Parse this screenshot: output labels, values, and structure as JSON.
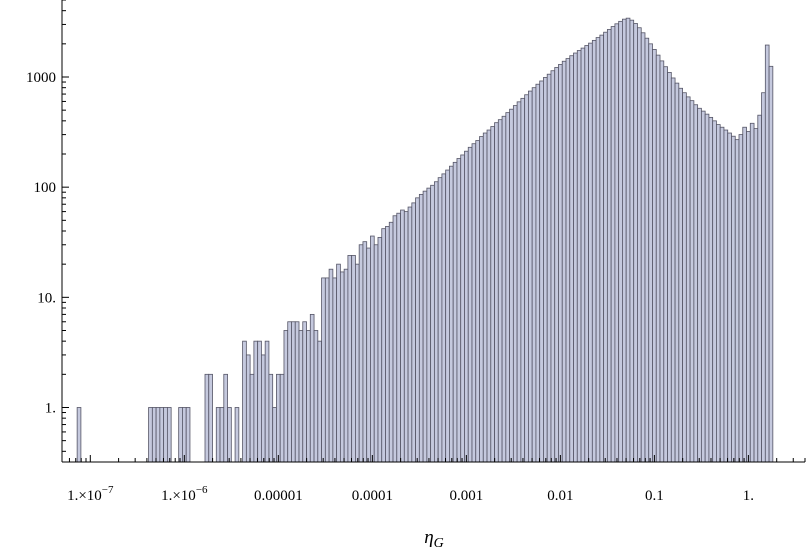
{
  "chart_data": {
    "type": "bar",
    "title": "",
    "xlabel": "η",
    "xlabel_sub": "G",
    "ylabel": "",
    "x_scale": "log",
    "y_scale": "log",
    "xlim": [
      5e-08,
      4
    ],
    "ylim": [
      0.32,
      5000
    ],
    "bar_color": "#c5c9de",
    "bar_edge_color": "#555566",
    "x_ticks": [
      {
        "value": 1e-07,
        "label_main": "1.×10",
        "label_exp": "−7"
      },
      {
        "value": 1e-06,
        "label_main": "1.×10",
        "label_exp": "−6"
      },
      {
        "value": 1e-05,
        "label_main": "0.00001",
        "label_exp": ""
      },
      {
        "value": 0.0001,
        "label_main": "0.0001",
        "label_exp": ""
      },
      {
        "value": 0.001,
        "label_main": "0.001",
        "label_exp": ""
      },
      {
        "value": 0.01,
        "label_main": "0.01",
        "label_exp": ""
      },
      {
        "value": 0.1,
        "label_main": "0.1",
        "label_exp": ""
      },
      {
        "value": 1,
        "label_main": "1.",
        "label_exp": ""
      }
    ],
    "y_ticks": [
      {
        "value": 1,
        "label": "1."
      },
      {
        "value": 10,
        "label": "10."
      },
      {
        "value": 100,
        "label": "100"
      },
      {
        "value": 1000,
        "label": "1000"
      }
    ],
    "bins": {
      "log10_start": -7.14,
      "log10_width": 0.04,
      "baseline": 0.32
    },
    "counts": [
      1,
      0,
      0,
      0,
      0,
      0,
      0,
      0,
      0,
      0,
      0,
      0,
      0,
      0,
      0,
      0,
      0,
      0,
      0,
      1,
      1,
      1,
      1,
      1,
      1,
      0,
      0,
      1,
      1,
      1,
      0,
      0,
      0,
      0,
      2,
      2,
      0,
      1,
      1,
      2,
      1,
      0,
      1,
      0,
      4,
      3,
      2,
      4,
      4,
      3,
      4,
      2,
      1,
      2,
      2,
      5,
      6,
      6,
      6,
      5,
      6,
      5,
      7,
      5,
      4,
      15,
      15,
      18,
      15,
      20,
      17,
      18,
      24,
      24,
      20,
      30,
      32,
      28,
      36,
      30,
      35,
      42,
      44,
      48,
      55,
      58,
      62,
      60,
      66,
      72,
      80,
      86,
      92,
      98,
      104,
      112,
      122,
      132,
      143,
      155,
      168,
      182,
      196,
      212,
      230,
      248,
      265,
      288,
      310,
      330,
      355,
      385,
      410,
      440,
      475,
      510,
      550,
      595,
      640,
      690,
      745,
      800,
      860,
      920,
      990,
      1060,
      1140,
      1220,
      1300,
      1390,
      1470,
      1560,
      1650,
      1740,
      1830,
      1930,
      2030,
      2150,
      2280,
      2400,
      2550,
      2700,
      2870,
      3040,
      3200,
      3350,
      3420,
      3280,
      3060,
      2800,
      2520,
      2250,
      2000,
      1780,
      1580,
      1400,
      1240,
      1100,
      980,
      880,
      790,
      720,
      660,
      610,
      560,
      520,
      490,
      460,
      430,
      400,
      370,
      350,
      330,
      310,
      290,
      270,
      300,
      350,
      320,
      380,
      340,
      450,
      720,
      1950,
      1250
    ]
  }
}
